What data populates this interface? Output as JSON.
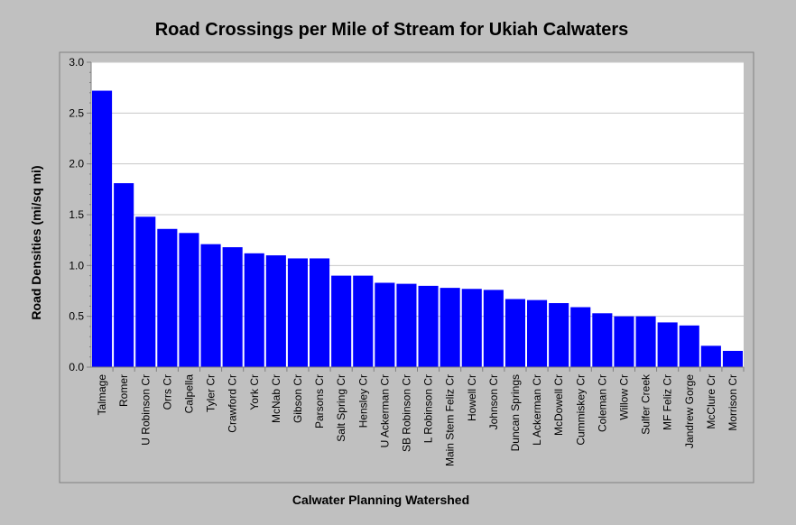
{
  "chart_data": {
    "type": "bar",
    "title": "Road Crossings per Mile of Stream for Ukiah Calwaters",
    "xlabel": "Calwater Planning Watershed",
    "ylabel": "Road Densities (mi/sq mi)",
    "ylim": [
      0,
      3.0
    ],
    "y_ticks": [
      "0.0",
      "0.5",
      "1.0",
      "1.5",
      "2.0",
      "2.5",
      "3.0"
    ],
    "grid": true,
    "categories": [
      "Talmage",
      "Romer",
      "U Robinson Cr",
      "Orrs Cr",
      "Calpella",
      "Tyler Cr",
      "Crawford Cr",
      "York Cr",
      "McNab Cr",
      "Gibson Cr",
      "Parsons Cr",
      "Salt Spring Cr",
      "Hensley Cr",
      "U Ackerman Cr",
      "SB Robinson Cr",
      "L Robinson Cr",
      "Main Stem Feliz Cr",
      "Howell Cr",
      "Johnson Cr",
      "Duncan Springs",
      "L Ackerman Cr",
      "McDowell Cr",
      "Cummiskey Cr",
      "Coleman Cr",
      "Willow Cr",
      "Sulfer Creek",
      "MF Feliz Cr",
      "Jandrew Gorge",
      "McClure Cr",
      "Morrison Cr"
    ],
    "values": [
      2.72,
      1.81,
      1.48,
      1.36,
      1.32,
      1.21,
      1.18,
      1.12,
      1.1,
      1.07,
      1.07,
      0.9,
      0.9,
      0.83,
      0.82,
      0.8,
      0.78,
      0.77,
      0.76,
      0.67,
      0.66,
      0.63,
      0.59,
      0.53,
      0.5,
      0.5,
      0.44,
      0.41,
      0.21,
      0.16
    ],
    "colors": {
      "bar": "#0000ff",
      "background": "#c0c0c0",
      "plot": "#ffffff",
      "grid": "#c8c8c8"
    }
  }
}
